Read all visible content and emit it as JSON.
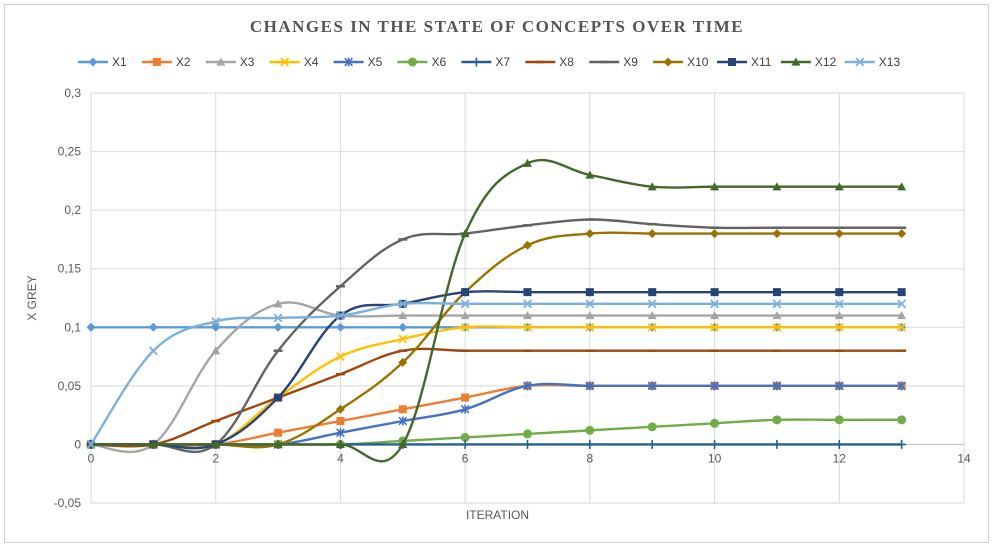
{
  "chart_data": {
    "type": "line",
    "title": "CHANGES IN THE STATE OF CONCEPTS OVER TIME",
    "xlabel": "ITERATION",
    "ylabel": "X GREY",
    "xlim": [
      0,
      14
    ],
    "ylim": [
      -0.05,
      0.3
    ],
    "x_ticks": [
      0,
      2,
      4,
      6,
      8,
      10,
      12,
      14
    ],
    "y_ticks": [
      -0.05,
      0,
      0.05,
      0.1,
      0.15,
      0.2,
      0.25,
      0.3
    ],
    "x_tick_labels": [
      "0",
      "2",
      "4",
      "6",
      "8",
      "10",
      "12",
      "14"
    ],
    "y_tick_labels": [
      "-0,05",
      "0",
      "0,05",
      "0,1",
      "0,15",
      "0,2",
      "0,25",
      "0,3"
    ],
    "grid": true,
    "legend_position": "top",
    "x": [
      0,
      1,
      2,
      3,
      4,
      5,
      6,
      7,
      8,
      9,
      10,
      11,
      12,
      13
    ],
    "series": [
      {
        "name": "X1",
        "color": "#5b9bd5",
        "marker": "diamond",
        "values": [
          0.1,
          0.1,
          0.1,
          0.1,
          0.1,
          0.1,
          0.1,
          0.1,
          0.1,
          0.1,
          0.1,
          0.1,
          0.1,
          0.1
        ]
      },
      {
        "name": "X2",
        "color": "#ed7d31",
        "marker": "square",
        "values": [
          0,
          0,
          0,
          0.01,
          0.02,
          0.03,
          0.04,
          0.05,
          0.05,
          0.05,
          0.05,
          0.05,
          0.05,
          0.05
        ]
      },
      {
        "name": "X3",
        "color": "#a5a5a5",
        "marker": "triangle",
        "values": [
          0,
          0,
          0.08,
          0.12,
          0.11,
          0.11,
          0.11,
          0.11,
          0.11,
          0.11,
          0.11,
          0.11,
          0.11,
          0.11
        ]
      },
      {
        "name": "X4",
        "color": "#ffc000",
        "marker": "x",
        "values": [
          0,
          0,
          0,
          0.04,
          0.075,
          0.09,
          0.1,
          0.1,
          0.1,
          0.1,
          0.1,
          0.1,
          0.1,
          0.1
        ]
      },
      {
        "name": "X5",
        "color": "#4472c4",
        "marker": "star",
        "values": [
          0,
          0,
          0,
          0,
          0.01,
          0.02,
          0.03,
          0.05,
          0.05,
          0.05,
          0.05,
          0.05,
          0.05,
          0.05
        ]
      },
      {
        "name": "X6",
        "color": "#70ad47",
        "marker": "circle",
        "values": [
          0,
          0,
          0,
          0,
          0,
          0.003,
          0.006,
          0.009,
          0.012,
          0.015,
          0.018,
          0.021,
          0.021,
          0.021
        ]
      },
      {
        "name": "X7",
        "color": "#255e91",
        "marker": "plus",
        "values": [
          0,
          0,
          0,
          0,
          0,
          0,
          0,
          0,
          0,
          0,
          0,
          0,
          0,
          0
        ]
      },
      {
        "name": "X8",
        "color": "#9e480e",
        "marker": "dash",
        "values": [
          0,
          0,
          0.02,
          0.04,
          0.06,
          0.08,
          0.08,
          0.08,
          0.08,
          0.08,
          0.08,
          0.08,
          0.08,
          0.08
        ]
      },
      {
        "name": "X9",
        "color": "#636363",
        "marker": "dash",
        "values": [
          0,
          0,
          0,
          0.08,
          0.135,
          0.175,
          0.18,
          0.187,
          0.192,
          0.188,
          0.185,
          0.185,
          0.185,
          0.185
        ]
      },
      {
        "name": "X10",
        "color": "#997300",
        "marker": "diamond",
        "values": [
          0,
          0,
          0,
          0,
          0.03,
          0.07,
          0.13,
          0.17,
          0.18,
          0.18,
          0.18,
          0.18,
          0.18,
          0.18
        ]
      },
      {
        "name": "X11",
        "color": "#264478",
        "marker": "square",
        "values": [
          0,
          0,
          0,
          0.04,
          0.11,
          0.12,
          0.13,
          0.13,
          0.13,
          0.13,
          0.13,
          0.13,
          0.13,
          0.13
        ]
      },
      {
        "name": "X12",
        "color": "#43682b",
        "marker": "triangle",
        "values": [
          0,
          0,
          0,
          0,
          0,
          0,
          0.18,
          0.24,
          0.23,
          0.22,
          0.22,
          0.22,
          0.22,
          0.22
        ]
      },
      {
        "name": "X13",
        "color": "#7cafdd",
        "marker": "x",
        "values": [
          0,
          0.08,
          0.105,
          0.108,
          0.11,
          0.12,
          0.12,
          0.12,
          0.12,
          0.12,
          0.12,
          0.12,
          0.12,
          0.12
        ]
      }
    ]
  }
}
